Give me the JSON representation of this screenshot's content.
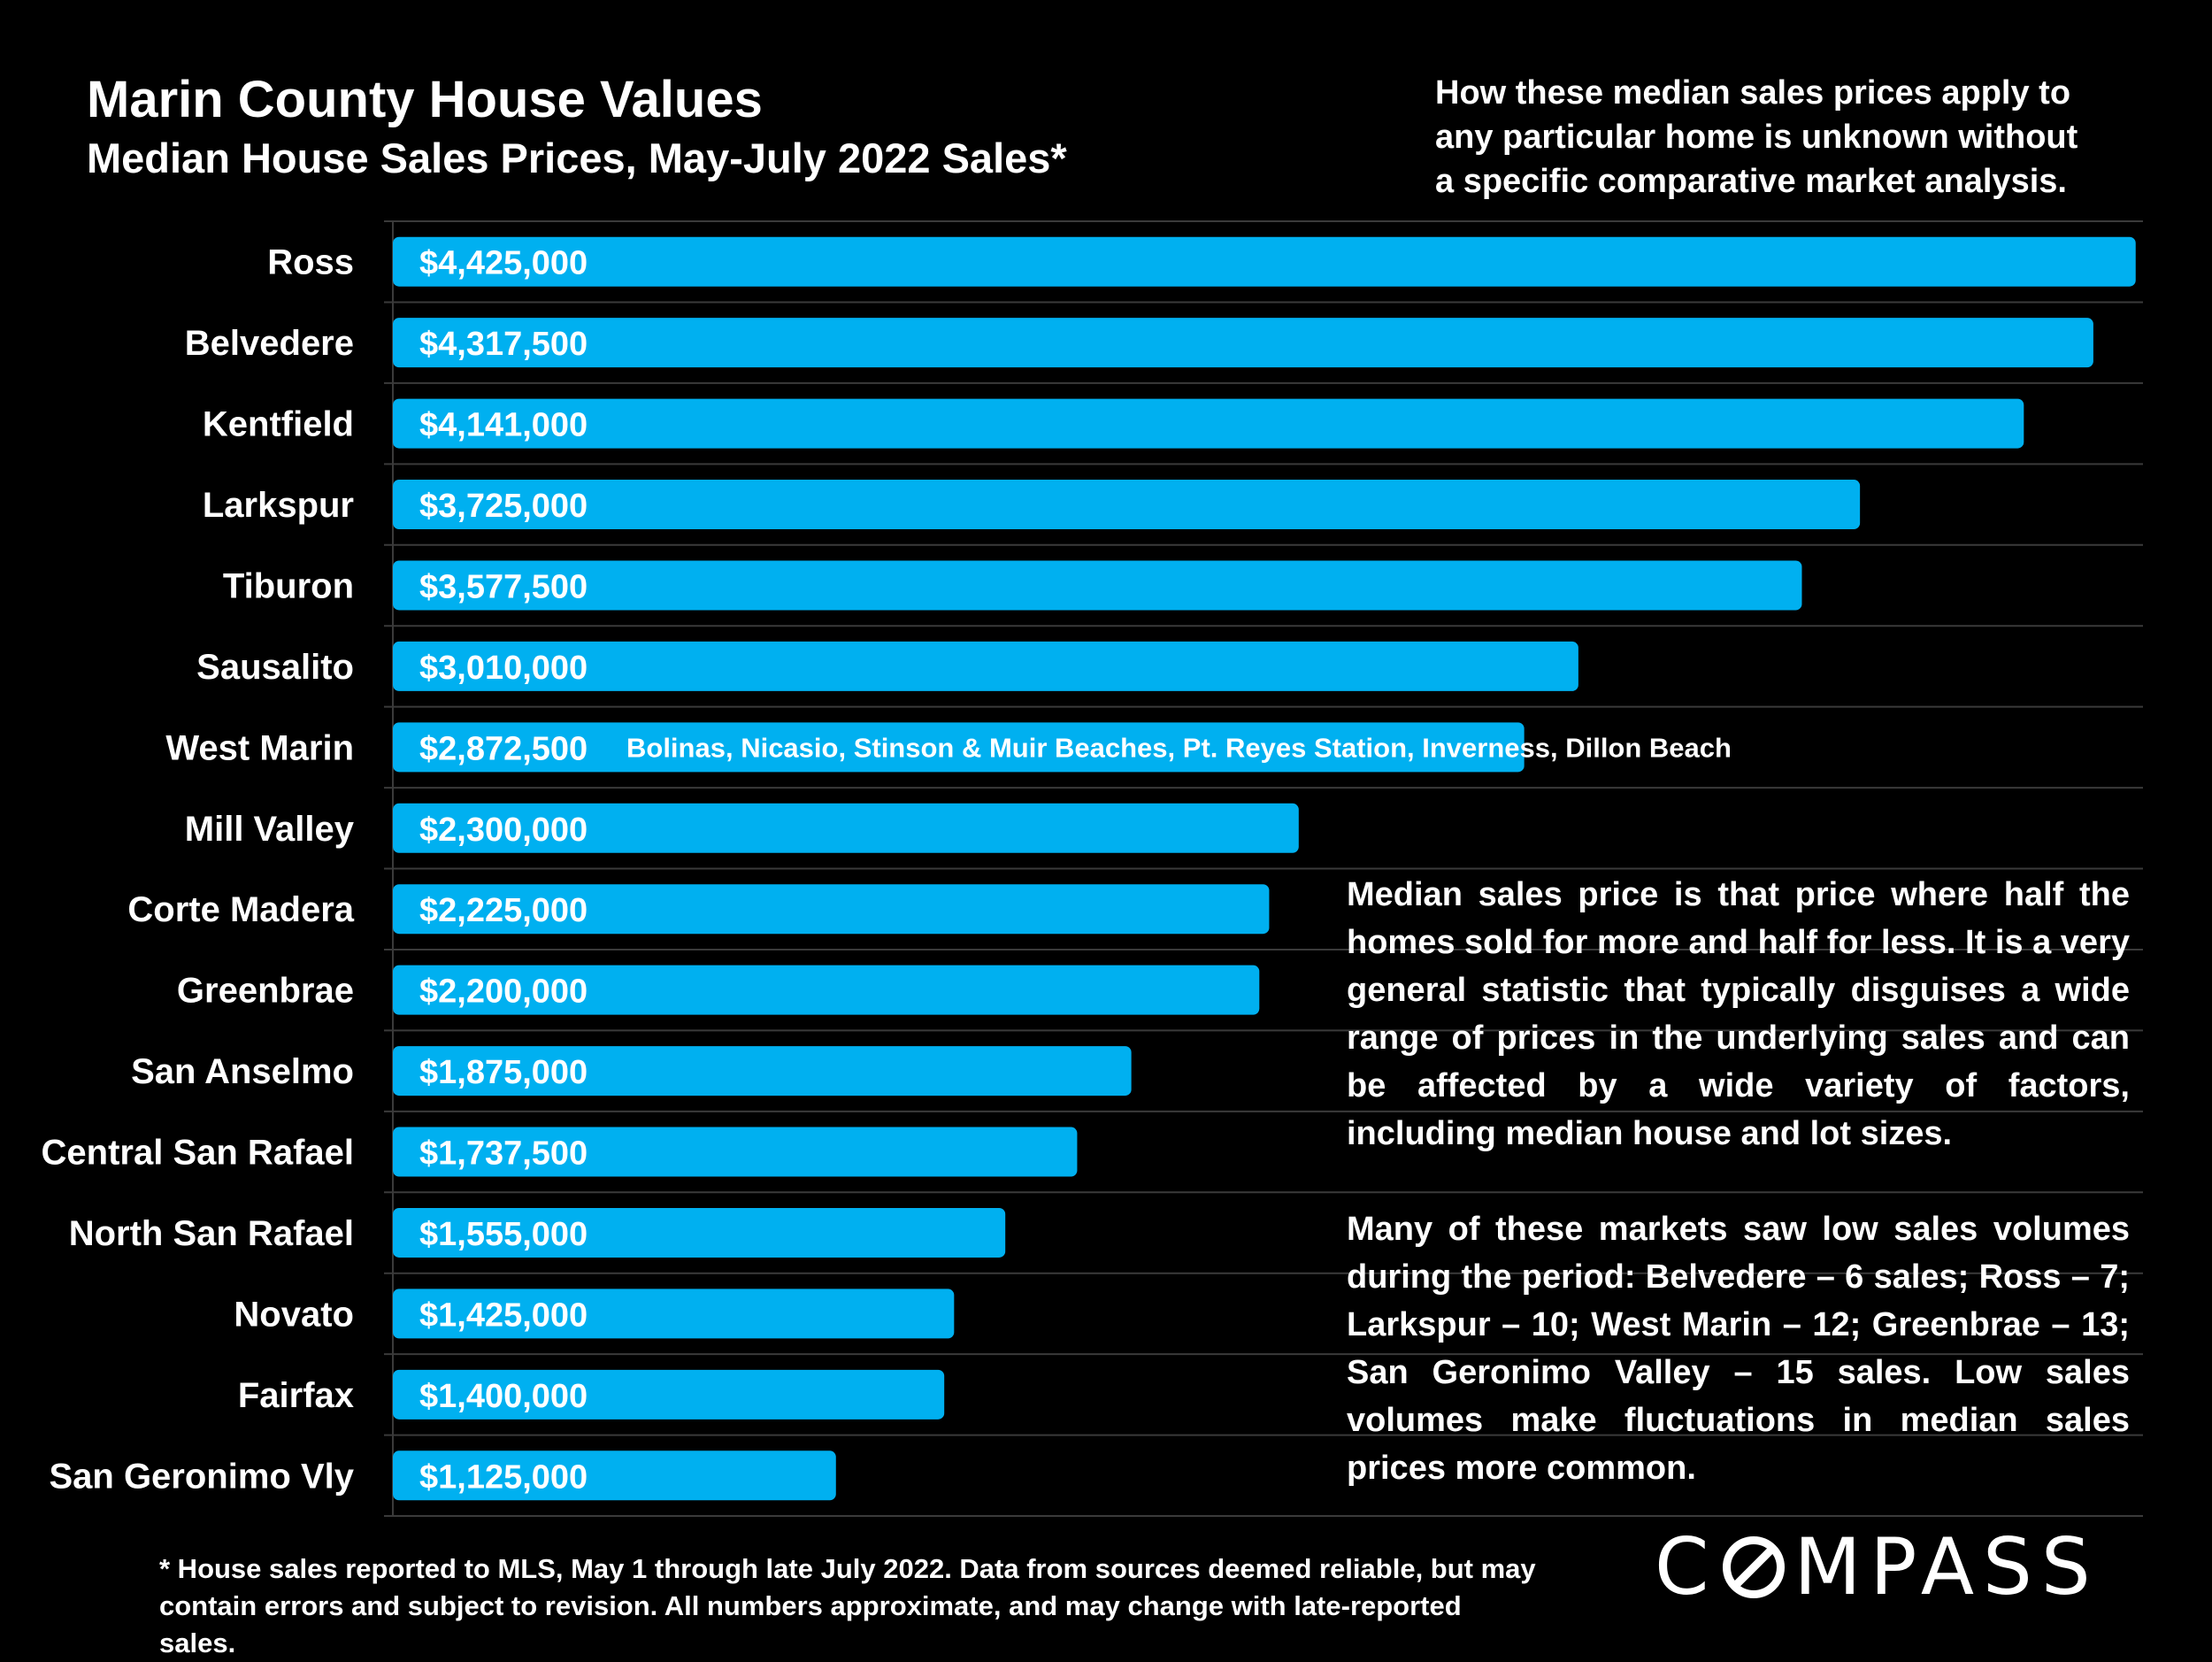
{
  "colors": {
    "background": "#000000",
    "bar": "#00b0f0",
    "text": "#ffffff",
    "gridline": "#3a3a3a"
  },
  "header": {
    "title": "Marin County House Values",
    "subtitle": "Median House Sales Prices, May-July 2022 Sales*"
  },
  "note_top": "How these median sales prices apply to\nany particular home is unknown without\na specific comparative market analysis.",
  "side_text": [
    "Median sales price is that price where half the homes sold for more and half for less. It is a very general statistic that typically disguises a wide range of prices in the underlying sales and can be affected by a wide variety of factors, including median house and lot sizes.",
    "Many of these markets saw low sales volumes during the period:  Belvedere – 6 sales; Ross – 7; Larkspur – 10; West Marin – 12; Greenbrae – 13; San Geronimo Valley – 15 sales. Low sales volumes make fluctuations in median sales prices more common."
  ],
  "footnote": "* House sales reported to MLS, May 1 through late July 2022. Data from sources deemed reliable, but may\ncontain errors and subject to revision. All numbers approximate, and may change with late-reported sales.",
  "logo": {
    "text": "COMPASS"
  },
  "chart_data": {
    "type": "bar",
    "orientation": "horizontal",
    "title": "Marin County House Values",
    "subtitle": "Median House Sales Prices, May-July 2022 Sales*",
    "categories": [
      "Ross",
      "Belvedere",
      "Kentfield",
      "Larkspur",
      "Tiburon",
      "Sausalito",
      "West Marin",
      "Mill Valley",
      "Corte Madera",
      "Greenbrae",
      "San Anselmo",
      "Central San Rafael",
      "North San Rafael",
      "Novato",
      "Fairfax",
      "San Geronimo Vly"
    ],
    "values": [
      4425000,
      4317500,
      4141000,
      3725000,
      3577500,
      3010000,
      2872500,
      2300000,
      2225000,
      2200000,
      1875000,
      1737500,
      1555000,
      1425000,
      1400000,
      1125000
    ],
    "data_labels": [
      "$4,425,000",
      "$4,317,500",
      "$4,141,000",
      "$3,725,000",
      "$3,577,500",
      "$3,010,000",
      "$2,872,500",
      "$2,300,000",
      "$2,225,000",
      "$2,200,000",
      "$1,875,000",
      "$1,737,500",
      "$1,555,000",
      "$1,425,000",
      "$1,400,000",
      "$1,125,000"
    ],
    "annotations": [
      {
        "category": "West Marin",
        "text": "Bolinas, Nicasio, Stinson & Muir Beaches, Pt. Reyes Station, Inverness, Dillon Beach"
      }
    ],
    "xlim": [
      0,
      4475000
    ],
    "grid": true,
    "legend": "none",
    "xlabel": "",
    "ylabel": ""
  }
}
